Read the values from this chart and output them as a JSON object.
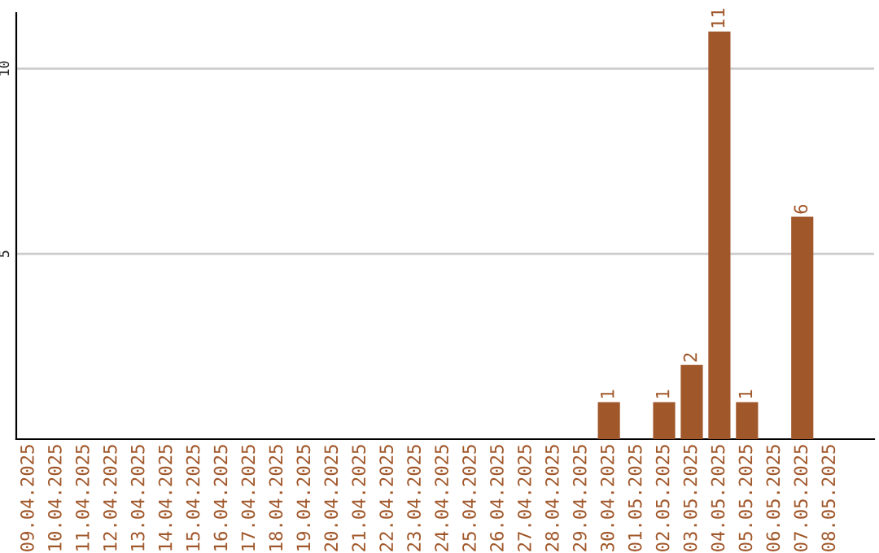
{
  "chart_data": {
    "type": "bar",
    "categories": [
      "09.04.2025",
      "10.04.2025",
      "11.04.2025",
      "12.04.2025",
      "13.04.2025",
      "14.04.2025",
      "15.04.2025",
      "16.04.2025",
      "17.04.2025",
      "18.04.2025",
      "19.04.2025",
      "20.04.2025",
      "21.04.2025",
      "22.04.2025",
      "23.04.2025",
      "24.04.2025",
      "25.04.2025",
      "26.04.2025",
      "27.04.2025",
      "28.04.2025",
      "29.04.2025",
      "30.04.2025",
      "01.05.2025",
      "02.05.2025",
      "03.05.2025",
      "04.05.2025",
      "05.05.2025",
      "06.05.2025",
      "07.05.2025",
      "08.05.2025"
    ],
    "values": [
      0,
      0,
      0,
      0,
      0,
      0,
      0,
      0,
      0,
      0,
      0,
      0,
      0,
      0,
      0,
      0,
      0,
      0,
      0,
      0,
      0,
      1,
      0,
      1,
      2,
      11,
      1,
      0,
      6,
      0
    ],
    "value_labels": [
      null,
      null,
      null,
      null,
      null,
      null,
      null,
      null,
      null,
      null,
      null,
      null,
      null,
      null,
      null,
      null,
      null,
      null,
      null,
      null,
      null,
      "1",
      null,
      "1",
      "2",
      "11",
      "1",
      null,
      "6",
      null
    ],
    "color": "#a0572a",
    "ylim": [
      0,
      11.5
    ],
    "yticks": [
      5,
      10
    ],
    "grid": "y",
    "legend": false
  }
}
